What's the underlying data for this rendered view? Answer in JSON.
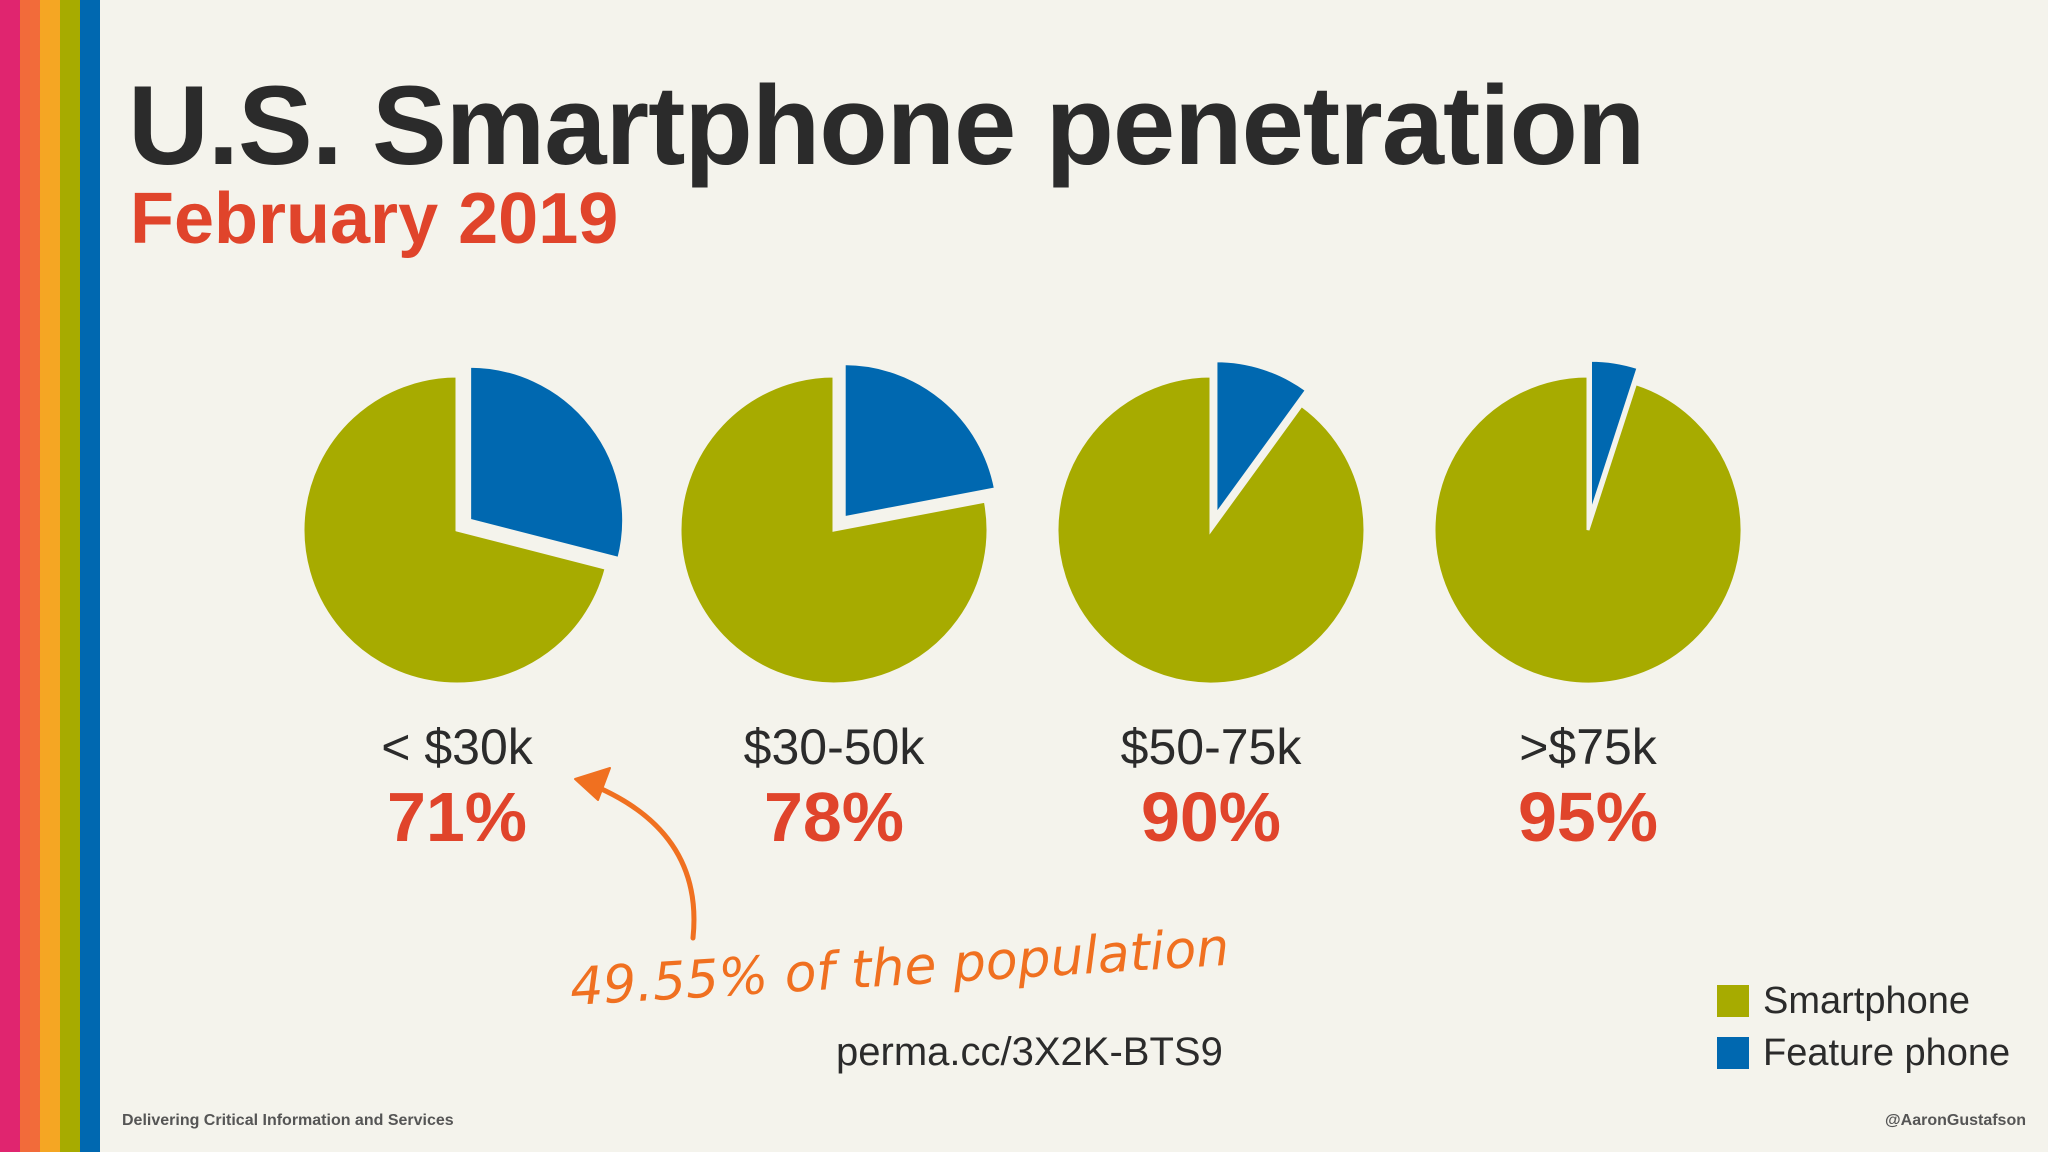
{
  "slide": {
    "title": "U.S. Smartphone penetration",
    "subtitle": "February 2019",
    "annotation": "49.55% of the population",
    "source": "perma.cc/3X2K-BTS9",
    "footer_left": "Delivering Critical Information and Services",
    "footer_right": "@AaronGustafson"
  },
  "colors": {
    "smartphone": "#a7ab00",
    "feature_phone": "#0068b0",
    "accent": "#e0442b",
    "annotation": "#f07020",
    "stripes": [
      "#e0256f",
      "#f26b3a",
      "#f5a623",
      "#a7ab00",
      "#0068b0"
    ]
  },
  "chart_data": {
    "type": "pie",
    "legend_position": "bottom-right",
    "series_names": [
      "Smartphone",
      "Feature phone"
    ],
    "pies": [
      {
        "category": "< $30k",
        "smartphone": 71,
        "label": "71%"
      },
      {
        "category": "$30-50k",
        "smartphone": 78,
        "label": "78%"
      },
      {
        "category": "$50-75k",
        "smartphone": 90,
        "label": "90%"
      },
      {
        "category": ">$75k",
        "smartphone": 95,
        "label": "95%"
      }
    ]
  }
}
